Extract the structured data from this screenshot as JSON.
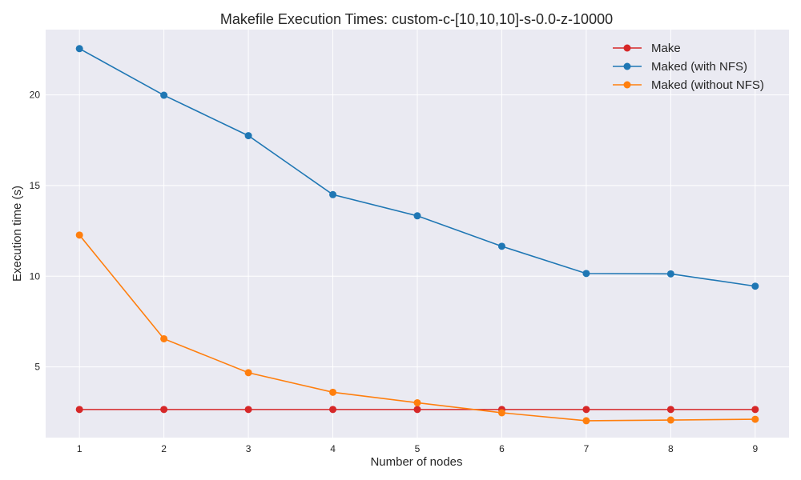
{
  "chart_data": {
    "type": "line",
    "title": "Makefile Execution Times: custom-c-[10,10,10]-s-0.0-z-10000",
    "xlabel": "Number of nodes",
    "ylabel": "Execution time (s)",
    "x": [
      1,
      2,
      3,
      4,
      5,
      6,
      7,
      8,
      9
    ],
    "xticks": [
      "1",
      "2",
      "3",
      "4",
      "5",
      "6",
      "7",
      "8",
      "9"
    ],
    "yticks": [
      "5",
      "10",
      "15",
      "20"
    ],
    "xlim": [
      0.6,
      9.4
    ],
    "ylim": [
      1.1,
      23.6
    ],
    "grid": true,
    "legend_position": "top-right",
    "background_color": "#EAEAF2",
    "series": [
      {
        "name": "Make",
        "color": "#D62728",
        "values": [
          2.65,
          2.65,
          2.65,
          2.65,
          2.65,
          2.65,
          2.65,
          2.65,
          2.65
        ]
      },
      {
        "name": "Maked (with NFS)",
        "color": "#1F77B4",
        "values": [
          22.55,
          19.98,
          17.75,
          14.5,
          13.33,
          11.65,
          10.15,
          10.13,
          9.45
        ]
      },
      {
        "name": "Maked (without NFS)",
        "color": "#FF7F0E",
        "values": [
          12.27,
          6.55,
          4.68,
          3.6,
          3.02,
          2.47,
          2.03,
          2.07,
          2.11
        ]
      }
    ]
  }
}
